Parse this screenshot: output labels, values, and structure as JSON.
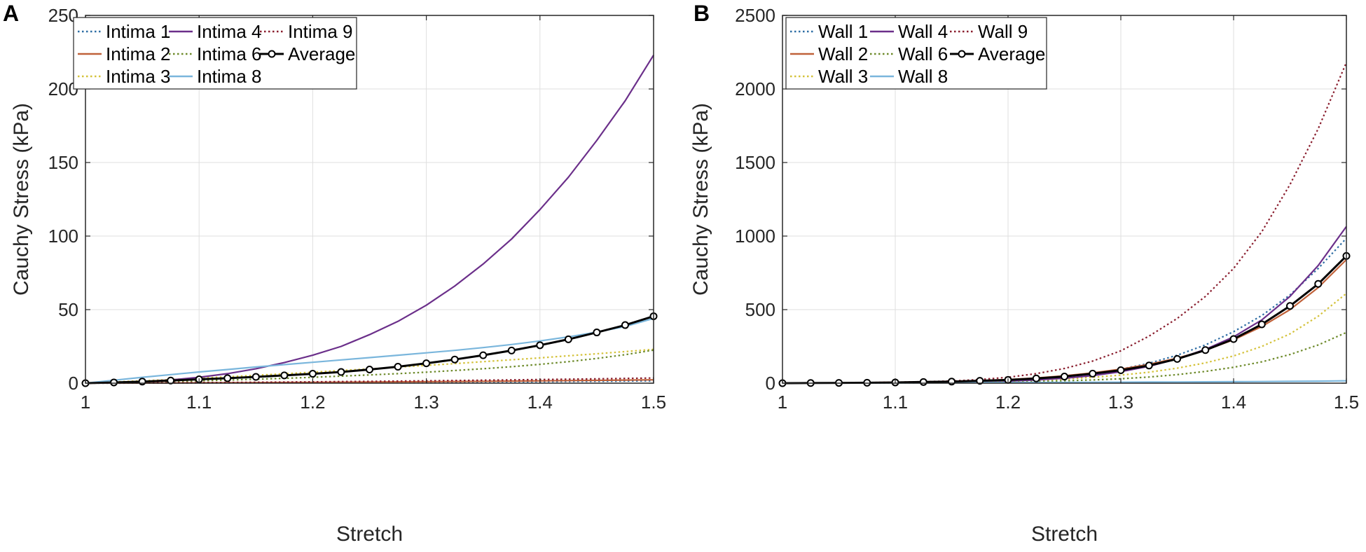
{
  "chart_data": [
    {
      "type": "line",
      "panel_label": "A",
      "xlabel": "Stretch",
      "ylabel": "Cauchy Stress (kPa)",
      "xlim": [
        1,
        1.5
      ],
      "ylim": [
        0,
        250
      ],
      "xticks": [
        1,
        1.1,
        1.2,
        1.3,
        1.4,
        1.5
      ],
      "xtick_labels": [
        "1",
        "1.1",
        "1.2",
        "1.3",
        "1.4",
        "1.5"
      ],
      "yticks": [
        0,
        50,
        100,
        150,
        200,
        250
      ],
      "ytick_labels": [
        "0",
        "50",
        "100",
        "150",
        "200",
        "250"
      ],
      "grid": true,
      "legend_position": "top-left",
      "legend_columns": 3,
      "x": [
        1,
        1.025,
        1.05,
        1.075,
        1.1,
        1.125,
        1.15,
        1.175,
        1.2,
        1.225,
        1.25,
        1.275,
        1.3,
        1.325,
        1.35,
        1.375,
        1.4,
        1.425,
        1.45,
        1.475,
        1.5
      ],
      "series": [
        {
          "name": "Intima 1",
          "color": "#2e6da4",
          "style": "dotted",
          "values": [
            0,
            0.02,
            0.05,
            0.08,
            0.12,
            0.17,
            0.22,
            0.28,
            0.35,
            0.42,
            0.5,
            0.58,
            0.67,
            0.76,
            0.86,
            0.96,
            1.07,
            1.18,
            1.3,
            1.42,
            1.55
          ]
        },
        {
          "name": "Intima 2",
          "color": "#c0623a",
          "style": "solid",
          "values": [
            0,
            0.05,
            0.1,
            0.16,
            0.23,
            0.3,
            0.38,
            0.47,
            0.56,
            0.66,
            0.77,
            0.89,
            1.01,
            1.14,
            1.28,
            1.43,
            1.58,
            1.74,
            1.91,
            2.09,
            2.3
          ]
        },
        {
          "name": "Intima 3",
          "color": "#d4c23a",
          "style": "dotted",
          "values": [
            0,
            0.8,
            1.6,
            2.5,
            3.4,
            4.4,
            5.4,
            6.4,
            7.5,
            8.6,
            9.7,
            10.9,
            12.1,
            13.3,
            14.6,
            15.9,
            17.2,
            18.6,
            20.0,
            21.5,
            23.0
          ]
        },
        {
          "name": "Intima 4",
          "color": "#6b2f8a",
          "style": "solid",
          "values": [
            0,
            0.3,
            1.0,
            2.2,
            4.0,
            6.5,
            9.8,
            14.0,
            19.0,
            25.0,
            33.0,
            42.0,
            53.0,
            66.0,
            81.0,
            98.0,
            118.0,
            140.0,
            165.0,
            192.0,
            223.0
          ]
        },
        {
          "name": "Intima 6",
          "color": "#6d8a2a",
          "style": "dotted",
          "values": [
            0,
            0.3,
            0.7,
            1.1,
            1.6,
            2.1,
            2.7,
            3.3,
            4.0,
            4.8,
            5.6,
            6.5,
            7.5,
            8.6,
            9.8,
            11.2,
            12.8,
            14.6,
            16.8,
            19.4,
            22.5
          ]
        },
        {
          "name": "Intima 8",
          "color": "#7ab6dc",
          "style": "solid",
          "values": [
            0,
            2.0,
            4.0,
            5.8,
            7.6,
            9.3,
            11.0,
            12.6,
            14.2,
            15.8,
            17.4,
            19.0,
            20.6,
            22.3,
            24.2,
            26.3,
            28.7,
            31.5,
            34.7,
            38.5,
            44.0
          ]
        },
        {
          "name": "Intima 9",
          "color": "#8a1e2e",
          "style": "dotted",
          "values": [
            0,
            0.08,
            0.17,
            0.27,
            0.38,
            0.5,
            0.63,
            0.77,
            0.92,
            1.08,
            1.25,
            1.43,
            1.62,
            1.82,
            2.03,
            2.25,
            2.48,
            2.72,
            2.97,
            3.23,
            3.5
          ]
        },
        {
          "name": "Average",
          "color": "#000000",
          "style": "solid",
          "markers": true,
          "values": [
            0,
            0.5,
            1.1,
            1.8,
            2.6,
            3.4,
            4.3,
            5.3,
            6.4,
            7.6,
            9.3,
            11.2,
            13.5,
            16.1,
            19.0,
            22.2,
            25.8,
            29.8,
            34.5,
            39.5,
            45.5
          ]
        }
      ]
    },
    {
      "type": "line",
      "panel_label": "B",
      "xlabel": "Stretch",
      "ylabel": "Cauchy Stress (kPa)",
      "xlim": [
        1,
        1.5
      ],
      "ylim": [
        0,
        2500
      ],
      "xticks": [
        1,
        1.1,
        1.2,
        1.3,
        1.4,
        1.5
      ],
      "xtick_labels": [
        "1",
        "1.1",
        "1.2",
        "1.3",
        "1.4",
        "1.5"
      ],
      "yticks": [
        0,
        500,
        1000,
        1500,
        2000,
        2500
      ],
      "ytick_labels": [
        "0",
        "500",
        "1000",
        "1500",
        "2000",
        "2500"
      ],
      "grid": true,
      "legend_position": "top-left",
      "legend_columns": 3,
      "x": [
        1,
        1.025,
        1.05,
        1.075,
        1.1,
        1.125,
        1.15,
        1.175,
        1.2,
        1.225,
        1.25,
        1.275,
        1.3,
        1.325,
        1.35,
        1.375,
        1.4,
        1.425,
        1.45,
        1.475,
        1.5
      ],
      "series": [
        {
          "name": "Wall 1",
          "color": "#2e6da4",
          "style": "dotted",
          "values": [
            0,
            1,
            2,
            3,
            5,
            7,
            10,
            14,
            20,
            30,
            45,
            65,
            95,
            135,
            190,
            260,
            350,
            460,
            600,
            780,
            985
          ]
        },
        {
          "name": "Wall 2",
          "color": "#c0623a",
          "style": "solid",
          "values": [
            0,
            1,
            2,
            4,
            6,
            9,
            13,
            18,
            25,
            35,
            50,
            70,
            95,
            128,
            170,
            225,
            295,
            385,
            500,
            650,
            840
          ]
        },
        {
          "name": "Wall 3",
          "color": "#d4c23a",
          "style": "dotted",
          "values": [
            0,
            0.5,
            1,
            2,
            3,
            5,
            7,
            10,
            14,
            20,
            28,
            40,
            55,
            75,
            102,
            138,
            185,
            250,
            335,
            455,
            610
          ]
        },
        {
          "name": "Wall 4",
          "color": "#6b2f8a",
          "style": "solid",
          "values": [
            0,
            0.5,
            1,
            2,
            3,
            5,
            7,
            10,
            14,
            22,
            34,
            52,
            78,
            115,
            165,
            230,
            315,
            430,
            590,
            800,
            1065
          ]
        },
        {
          "name": "Wall 6",
          "color": "#6d8a2a",
          "style": "dotted",
          "values": [
            0,
            0.3,
            0.6,
            1,
            2,
            3,
            4,
            6,
            8,
            11,
            16,
            22,
            30,
            42,
            58,
            80,
            108,
            145,
            195,
            260,
            345
          ]
        },
        {
          "name": "Wall 8",
          "color": "#7ab6dc",
          "style": "solid",
          "values": [
            0,
            0.5,
            1,
            1.5,
            2,
            2.5,
            3,
            3.6,
            4.2,
            4.8,
            5.4,
            6,
            6.7,
            7.4,
            8.2,
            9,
            10,
            11,
            12.5,
            14,
            16
          ]
        },
        {
          "name": "Wall 9",
          "color": "#8a1e2e",
          "style": "dotted",
          "values": [
            0,
            1,
            2,
            4,
            6,
            10,
            15,
            25,
            40,
            65,
            100,
            150,
            220,
            320,
            440,
            590,
            780,
            1030,
            1350,
            1730,
            2180
          ]
        },
        {
          "name": "Average",
          "color": "#000000",
          "style": "solid",
          "markers": true,
          "values": [
            0,
            1,
            2,
            3,
            5,
            8,
            11,
            16,
            22,
            32,
            45,
            65,
            88,
            120,
            165,
            225,
            300,
            400,
            525,
            675,
            865
          ]
        }
      ]
    }
  ]
}
